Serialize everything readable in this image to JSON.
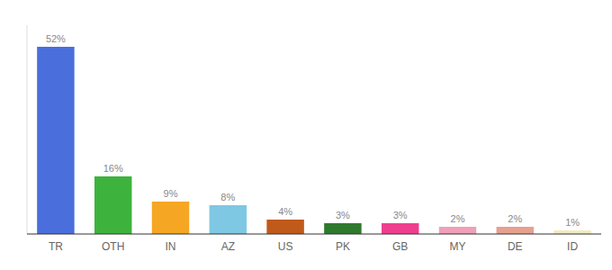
{
  "chart_data": {
    "type": "bar",
    "categories": [
      "TR",
      "OTH",
      "IN",
      "AZ",
      "US",
      "PK",
      "GB",
      "MY",
      "DE",
      "ID"
    ],
    "values": [
      52,
      16,
      9,
      8,
      4,
      3,
      3,
      2,
      2,
      1
    ],
    "value_labels": [
      "52%",
      "16%",
      "9%",
      "8%",
      "4%",
      "3%",
      "3%",
      "2%",
      "2%",
      "1%"
    ],
    "colors": [
      "#4a6fdc",
      "#3db33d",
      "#f5a623",
      "#7ec8e3",
      "#c05a1a",
      "#2d7a2d",
      "#f03e8f",
      "#f0a0b8",
      "#e8a090",
      "#f0ecc0"
    ],
    "ylim": [
      0,
      58
    ],
    "data_labels": true,
    "tick_labels": "x"
  }
}
